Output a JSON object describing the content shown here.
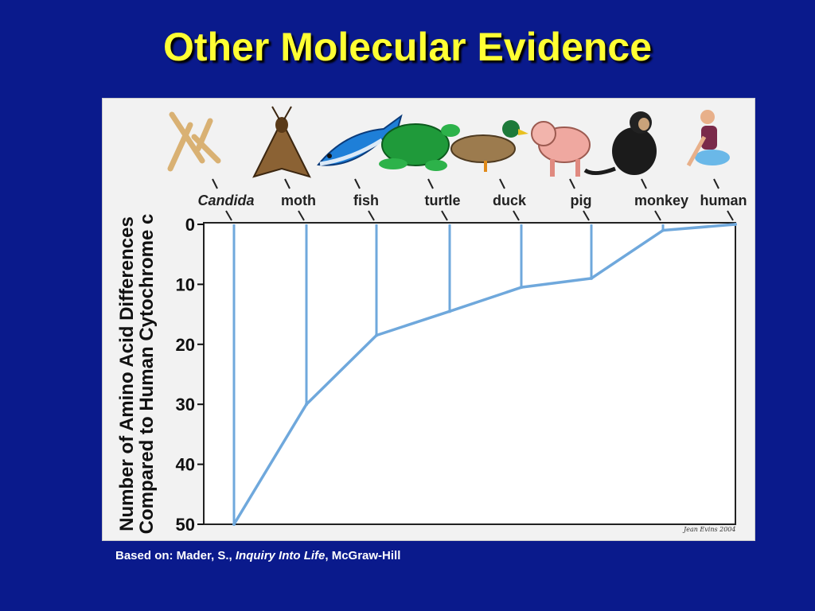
{
  "slide": {
    "title": "Other Molecular Evidence",
    "caption": {
      "prefix": "Based on: Mader, S., ",
      "book": "Inquiry Into Life",
      "suffix": ", McGraw-Hill"
    },
    "credit": "Jean Evins 2004"
  },
  "colors": {
    "background": "#0a1a8c",
    "title": "#ffff33",
    "line": "#6fa8dc",
    "panel": "#f2f2f2"
  },
  "chart_data": {
    "type": "line",
    "title": "",
    "ylabel": [
      "Number of Amino Acid Differences",
      "Compared to Human Cytochrome c"
    ],
    "xlabel": "",
    "ylim": [
      0,
      50
    ],
    "y_inverted": true,
    "yticks": [
      0,
      10,
      20,
      30,
      40,
      50
    ],
    "categories": [
      "Candida",
      "moth",
      "fish",
      "turtle",
      "duck",
      "pig",
      "monkey",
      "human"
    ],
    "icons": [
      "candida-icon",
      "moth-icon",
      "fish-icon",
      "turtle-icon",
      "duck-icon",
      "pig-icon",
      "monkey-icon",
      "human-icon"
    ],
    "values": [
      50,
      30,
      18.5,
      14.5,
      10.5,
      9,
      1,
      0
    ],
    "grid": false
  }
}
